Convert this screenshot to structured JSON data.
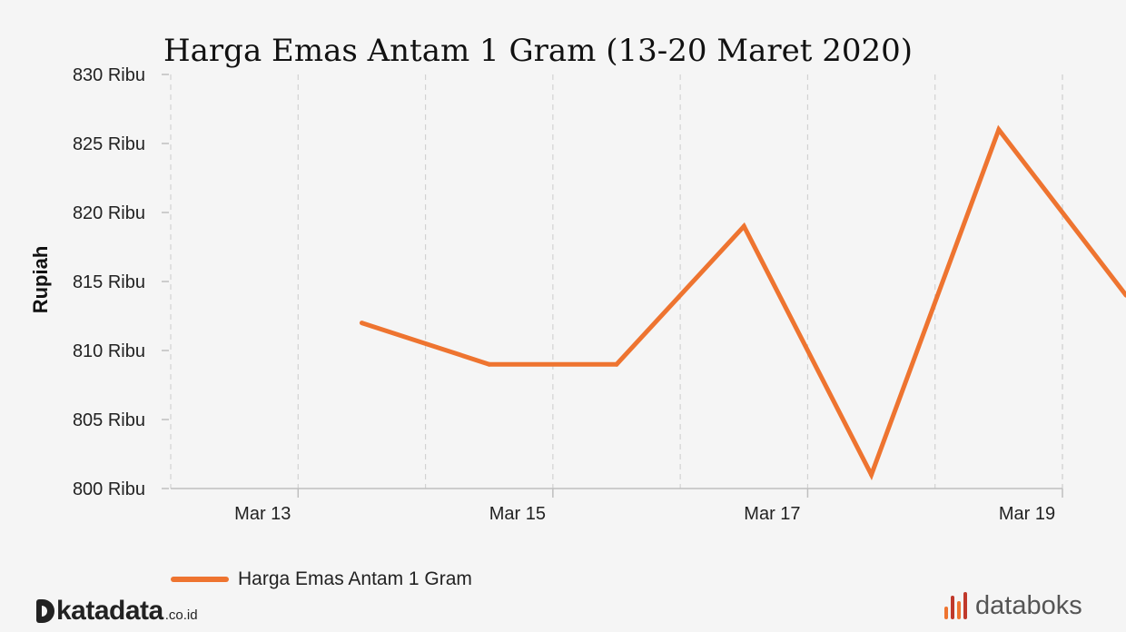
{
  "chart_data": {
    "type": "line",
    "title": "Harga Emas Antam 1 Gram (13-20 Maret 2020)",
    "ylabel": "Rupiah",
    "xlabel": "",
    "x": [
      "2020-03-13",
      "2020-03-14",
      "2020-03-15",
      "2020-03-16",
      "2020-03-17",
      "2020-03-18",
      "2020-03-19"
    ],
    "series": [
      {
        "name": "Harga Emas Antam 1 Gram",
        "color": "#ee7430",
        "values": [
          812000,
          809000,
          809000,
          819000,
          801000,
          826000,
          814000
        ]
      }
    ],
    "ylim": [
      800000,
      830000
    ],
    "y_ticks": [
      {
        "value": 800000,
        "label": "800 Ribu"
      },
      {
        "value": 805000,
        "label": "805 Ribu"
      },
      {
        "value": 810000,
        "label": "810 Ribu"
      },
      {
        "value": 815000,
        "label": "815 Ribu"
      },
      {
        "value": 820000,
        "label": "820 Ribu"
      },
      {
        "value": 825000,
        "label": "825 Ribu"
      },
      {
        "value": 830000,
        "label": "830 Ribu"
      }
    ],
    "x_ticks": [
      {
        "value": "2020-03-13",
        "label": "Mar 13"
      },
      {
        "value": "2020-03-15",
        "label": "Mar 15"
      },
      {
        "value": "2020-03-17",
        "label": "Mar 17"
      },
      {
        "value": "2020-03-19",
        "label": "Mar 19"
      }
    ],
    "xlim": [
      "2020-03-12",
      "2020-03-19"
    ],
    "x_gridlines": [
      "2020-03-12",
      "2020-03-13",
      "2020-03-14",
      "2020-03-15",
      "2020-03-16",
      "2020-03-17",
      "2020-03-18",
      "2020-03-19"
    ],
    "grid": true,
    "legend_position": "bottom-left"
  },
  "branding": {
    "katadata": {
      "word": "katadata",
      "suffix": ".co.id"
    },
    "databoks": {
      "word": "databoks",
      "bar_colors": [
        "#ee7430",
        "#c0392b",
        "#ee7430",
        "#c0392b"
      ]
    }
  }
}
